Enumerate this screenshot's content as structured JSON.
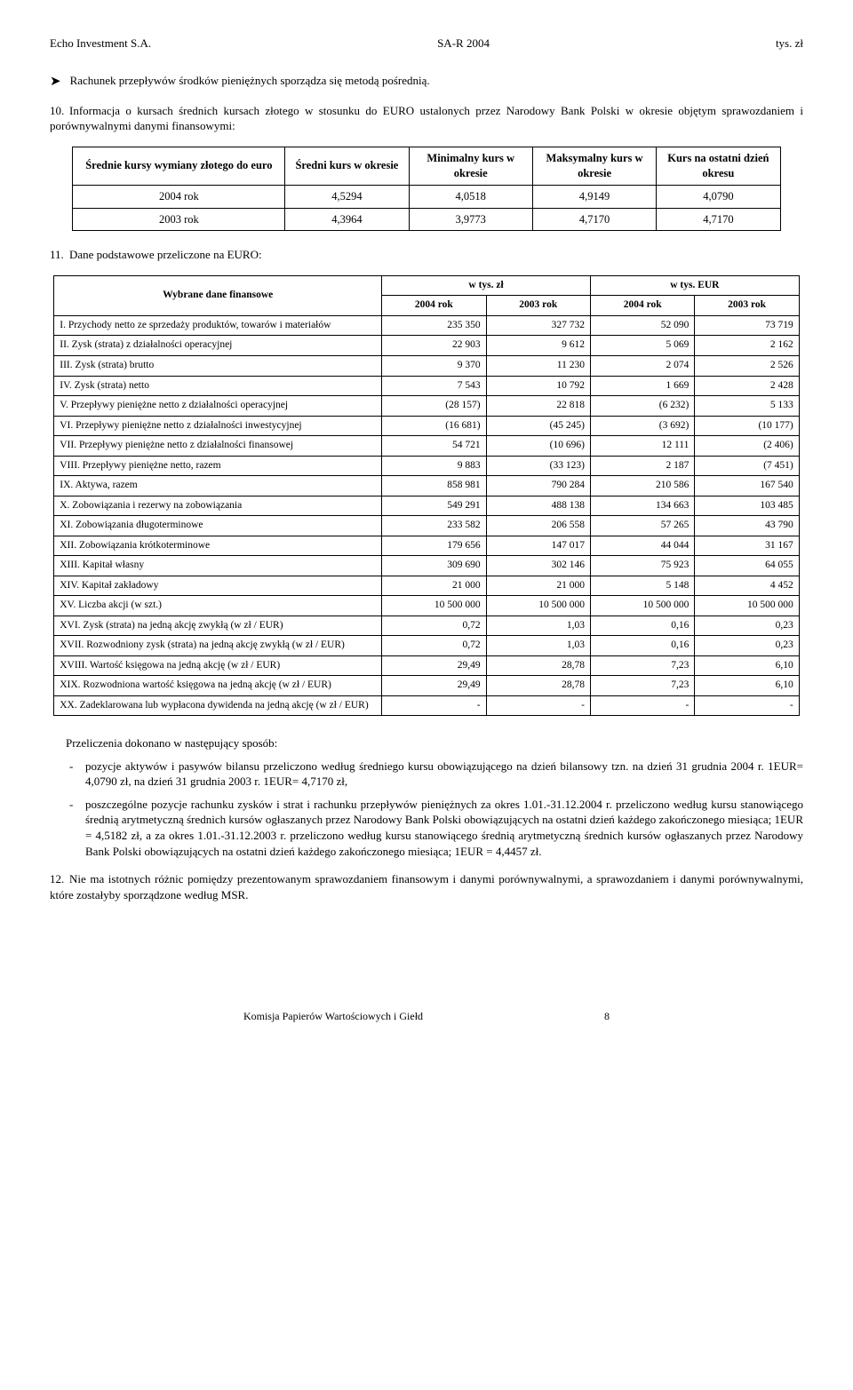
{
  "header": {
    "left": "Echo Investment S.A.",
    "center": "SA-R 2004",
    "right": "tys. zł"
  },
  "section9": {
    "arrow": "➤",
    "text": "Rachunek przepływów środków pieniężnych sporządza się metodą pośrednią."
  },
  "section10": {
    "num": "10.",
    "text": "Informacja o kursach średnich kursach złotego w stosunku do EURO ustalonych przez Narodowy Bank Polski w okresie objętym sprawozdaniem i porównywalnymi danymi finansowymi:"
  },
  "ratesTable": {
    "headers": [
      "Średnie kursy wymiany złotego do euro",
      "Średni kurs w okresie",
      "Minimalny kurs w okresie",
      "Maksymalny kurs w okresie",
      "Kurs na ostatni dzień okresu"
    ],
    "rows": [
      {
        "label": "2004 rok",
        "vals": [
          "4,5294",
          "4,0518",
          "4,9149",
          "4,0790"
        ]
      },
      {
        "label": "2003 rok",
        "vals": [
          "4,3964",
          "3,9773",
          "4,7170",
          "4,7170"
        ]
      }
    ]
  },
  "section11": {
    "num": "11.",
    "text": "Dane podstawowe przeliczone na EURO:"
  },
  "finTable": {
    "topHeaders": {
      "label": "Wybrane dane finansowe",
      "g1": "w tys. zł",
      "g2": "w tys. EUR"
    },
    "subHeaders": [
      "2004 rok",
      "2003 rok",
      "2004 rok",
      "2003 rok"
    ],
    "rows": [
      {
        "label": "I. Przychody netto ze sprzedaży produktów, towarów i materiałów",
        "vals": [
          "235 350",
          "327 732",
          "52 090",
          "73 719"
        ]
      },
      {
        "label": "II. Zysk (strata) z działalności operacyjnej",
        "vals": [
          "22 903",
          "9 612",
          "5 069",
          "2 162"
        ]
      },
      {
        "label": "III. Zysk (strata) brutto",
        "vals": [
          "9 370",
          "11 230",
          "2 074",
          "2 526"
        ]
      },
      {
        "label": "IV. Zysk (strata) netto",
        "vals": [
          "7 543",
          "10 792",
          "1 669",
          "2 428"
        ]
      },
      {
        "label": "V. Przepływy pieniężne netto z działalności operacyjnej",
        "vals": [
          "(28 157)",
          "22 818",
          "(6 232)",
          "5 133"
        ]
      },
      {
        "label": "VI. Przepływy pieniężne netto z działalności inwestycyjnej",
        "vals": [
          "(16 681)",
          "(45 245)",
          "(3 692)",
          "(10 177)"
        ]
      },
      {
        "label": "VII. Przepływy pieniężne netto z działalności finansowej",
        "vals": [
          "54 721",
          "(10 696)",
          "12 111",
          "(2 406)"
        ]
      },
      {
        "label": "VIII. Przepływy pieniężne netto, razem",
        "vals": [
          "9 883",
          "(33 123)",
          "2 187",
          "(7 451)"
        ]
      },
      {
        "label": "IX. Aktywa, razem",
        "vals": [
          "858 981",
          "790 284",
          "210 586",
          "167 540"
        ]
      },
      {
        "label": "X. Zobowiązania i rezerwy na zobowiązania",
        "vals": [
          "549 291",
          "488 138",
          "134 663",
          "103 485"
        ]
      },
      {
        "label": "XI. Zobowiązania długoterminowe",
        "vals": [
          "233 582",
          "206 558",
          "57 265",
          "43 790"
        ]
      },
      {
        "label": "XII. Zobowiązania krótkoterminowe",
        "vals": [
          "179 656",
          "147 017",
          "44 044",
          "31 167"
        ]
      },
      {
        "label": "XIII. Kapitał własny",
        "vals": [
          "309 690",
          "302 146",
          "75 923",
          "64 055"
        ]
      },
      {
        "label": "XIV. Kapitał zakładowy",
        "vals": [
          "21 000",
          "21 000",
          "5 148",
          "4 452"
        ]
      },
      {
        "label": "XV. Liczba akcji (w szt.)",
        "vals": [
          "10 500 000",
          "10 500 000",
          "10 500 000",
          "10 500 000"
        ]
      },
      {
        "label": "XVI. Zysk (strata) na jedną akcję zwykłą (w zł / EUR)",
        "vals": [
          "0,72",
          "1,03",
          "0,16",
          "0,23"
        ]
      },
      {
        "label": "XVII. Rozwodniony zysk (strata) na jedną akcję zwykłą (w zł / EUR)",
        "vals": [
          "0,72",
          "1,03",
          "0,16",
          "0,23"
        ]
      },
      {
        "label": "XVIII. Wartość księgowa na jedną akcję (w zł / EUR)",
        "vals": [
          "29,49",
          "28,78",
          "7,23",
          "6,10"
        ]
      },
      {
        "label": "XIX. Rozwodniona wartość księgowa na jedną akcję (w zł / EUR)",
        "vals": [
          "29,49",
          "28,78",
          "7,23",
          "6,10"
        ]
      },
      {
        "label": "XX. Zadeklarowana lub wypłacona dywidenda na jedną akcję (w zł / EUR)",
        "vals": [
          "-",
          "-",
          "-",
          "-"
        ]
      }
    ]
  },
  "calcIntro": "Przeliczenia dokonano w następujący sposób:",
  "calcList": [
    "pozycje aktywów i pasywów bilansu przeliczono według średniego kursu obowiązującego na dzień bilansowy tzn. na dzień 31 grudnia 2004 r. 1EUR= 4,0790 zł, na dzień 31 grudnia 2003 r. 1EUR= 4,7170 zł,",
    "poszczególne pozycje rachunku zysków i strat i rachunku przepływów pieniężnych za okres 1.01.-31.12.2004 r. przeliczono według kursu stanowiącego średnią arytmetyczną średnich kursów ogłaszanych przez Narodowy Bank Polski obowiązujących na ostatni dzień każdego zakończonego miesiąca; 1EUR = 4,5182 zł, a za okres 1.01.-31.12.2003 r. przeliczono według kursu stanowiącego średnią arytmetyczną średnich kursów ogłaszanych przez Narodowy Bank Polski obowiązujących na ostatni dzień każdego zakończonego miesiąca; 1EUR = 4,4457 zł."
  ],
  "section12": {
    "num": "12.",
    "text": "Nie ma istotnych różnic pomiędzy prezentowanym sprawozdaniem finansowym i danymi porównywalnymi, a sprawozdaniem i danymi porównywalnymi, które zostałyby sporządzone według MSR."
  },
  "footer": {
    "left": "Komisja Papierów Wartościowych i Giełd",
    "page": "8"
  }
}
